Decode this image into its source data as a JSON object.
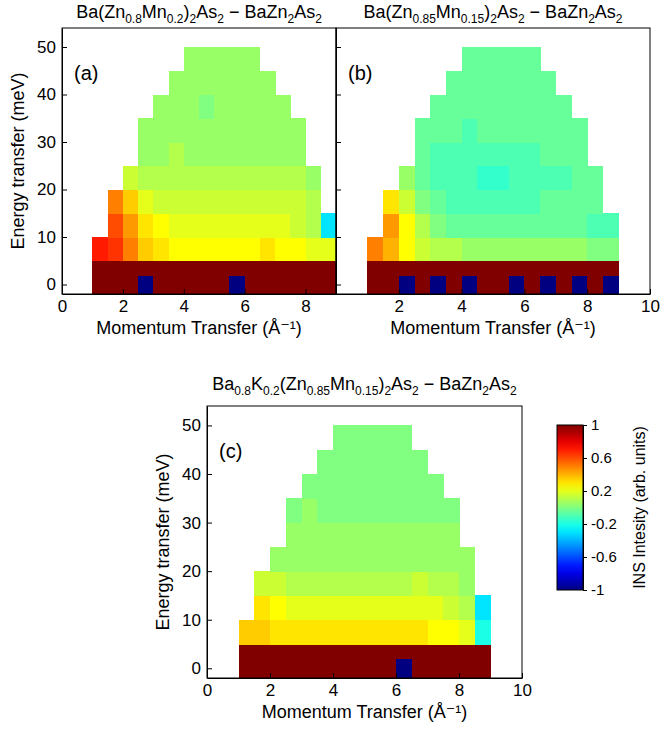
{
  "chart_data": [
    {
      "type": "heatmap",
      "title": "Ba(Zn0.8Mn0.2)2As2 − BaZn2As2",
      "annotations": [
        "(a)"
      ],
      "x_label": "Momentum Transfer (Å⁻¹)",
      "y_label": "Energy transfer (meV)",
      "xlim": [
        0,
        9
      ],
      "xticks": [
        0,
        2,
        4,
        6,
        8
      ],
      "ylim": [
        -2,
        54
      ],
      "yticks": [
        0,
        10,
        20,
        30,
        40,
        50
      ],
      "q_edges": [
        1,
        1.5,
        2,
        2.5,
        3,
        3.5,
        4,
        4.5,
        5,
        5.5,
        6,
        6.5,
        7,
        7.5,
        8,
        8.5,
        9
      ],
      "e_edges": [
        -2,
        2,
        5,
        10,
        15,
        20,
        25,
        30,
        35,
        40,
        45,
        50
      ],
      "cells": [
        [
          1,
          1,
          1,
          -1,
          1,
          1,
          1,
          1,
          1,
          -1,
          1,
          1,
          1,
          1,
          1,
          1
        ],
        [
          1,
          1,
          1,
          1,
          1,
          1,
          1,
          1,
          1,
          1,
          1,
          1,
          1,
          1,
          1,
          1
        ],
        [
          0.7,
          0.65,
          0.5,
          0.35,
          0.3,
          0.25,
          0.25,
          0.25,
          0.25,
          0.25,
          0.25,
          0.3,
          0.25,
          0.25,
          0.2,
          0.2
        ],
        [
          null,
          0.6,
          0.45,
          0.3,
          0.25,
          0.2,
          0.2,
          0.2,
          0.2,
          0.2,
          0.2,
          0.2,
          0.2,
          0.15,
          0.1,
          -0.3
        ],
        [
          null,
          0.5,
          0.35,
          0.2,
          0.15,
          0.15,
          0.15,
          0.15,
          0.15,
          0.15,
          0.15,
          0.15,
          0.15,
          0.15,
          0.1,
          null
        ],
        [
          null,
          null,
          0.15,
          0.1,
          0.1,
          0.1,
          0.1,
          0.1,
          0.1,
          0.1,
          0.1,
          0.1,
          0.1,
          0.1,
          0.05,
          null
        ],
        [
          null,
          null,
          null,
          0.05,
          0.05,
          0.1,
          0.05,
          0.05,
          0.05,
          0.05,
          0.05,
          0.05,
          0.05,
          0.05,
          null,
          null
        ],
        [
          null,
          null,
          null,
          0.05,
          0.05,
          0.05,
          0.05,
          0.05,
          0.05,
          0.05,
          0.05,
          0.05,
          0.05,
          0.05,
          null,
          null
        ],
        [
          null,
          null,
          null,
          null,
          0.05,
          0.05,
          0.05,
          0,
          0.05,
          0.05,
          0.05,
          0.05,
          0.05,
          null,
          null,
          null
        ],
        [
          null,
          null,
          null,
          null,
          null,
          0.05,
          0.05,
          0.05,
          0.05,
          0.05,
          0.05,
          0.05,
          null,
          null,
          null,
          null
        ],
        [
          null,
          null,
          null,
          null,
          null,
          null,
          0.05,
          0.05,
          0.05,
          0.05,
          0.05,
          null,
          null,
          null,
          null,
          null
        ]
      ]
    },
    {
      "type": "heatmap",
      "title": "Ba(Zn0.85Mn0.15)2As2 − BaZn2As2",
      "annotations": [
        "(b)"
      ],
      "x_label": "Momentum Transfer (Å⁻¹)",
      "tick_labels": "x",
      "xlim": [
        0,
        10
      ],
      "xticks": [
        2,
        4,
        6,
        8,
        10
      ],
      "ylim": [
        -2,
        54
      ],
      "yticks": [
        0,
        10,
        20,
        30,
        40,
        50
      ],
      "q_edges": [
        1,
        1.5,
        2,
        2.5,
        3,
        3.5,
        4,
        4.5,
        5,
        5.5,
        6,
        6.5,
        7,
        7.5,
        8,
        8.5,
        9
      ],
      "e_edges": [
        -2,
        2,
        5,
        10,
        15,
        20,
        25,
        30,
        35,
        40,
        45,
        50
      ],
      "cells": [
        [
          1,
          1,
          -1,
          1,
          -1,
          1,
          -1,
          1,
          1,
          -1,
          1,
          -1,
          1,
          -1,
          1,
          -1
        ],
        [
          1,
          1,
          1,
          1,
          1,
          1,
          1,
          1,
          1,
          1,
          1,
          1,
          1,
          1,
          1,
          1
        ],
        [
          0.5,
          0.4,
          0.25,
          0.15,
          0.1,
          0.1,
          0.05,
          0.05,
          0.05,
          0.05,
          0.05,
          0.05,
          0.05,
          0.05,
          0,
          0
        ],
        [
          null,
          0.45,
          0.25,
          0.1,
          0,
          -0.05,
          -0.05,
          -0.05,
          -0.05,
          -0.05,
          -0.05,
          -0.05,
          -0.05,
          -0.05,
          -0.1,
          -0.1
        ],
        [
          null,
          0.3,
          0.15,
          0,
          -0.05,
          -0.1,
          -0.1,
          -0.1,
          -0.1,
          -0.1,
          -0.1,
          -0.05,
          -0.05,
          -0.05,
          -0.05,
          null
        ],
        [
          null,
          null,
          0.05,
          -0.05,
          -0.1,
          -0.1,
          -0.1,
          -0.15,
          -0.15,
          -0.1,
          -0.1,
          -0.1,
          -0.1,
          -0.05,
          -0.05,
          null
        ],
        [
          null,
          null,
          null,
          -0.05,
          -0.1,
          -0.1,
          -0.1,
          -0.1,
          -0.1,
          -0.1,
          -0.1,
          -0.05,
          -0.05,
          -0.05,
          null,
          null
        ],
        [
          null,
          null,
          null,
          -0.05,
          -0.05,
          -0.05,
          -0.1,
          -0.05,
          -0.05,
          -0.05,
          -0.05,
          -0.05,
          -0.05,
          -0.05,
          null,
          null
        ],
        [
          null,
          null,
          null,
          null,
          -0.05,
          -0.05,
          -0.05,
          -0.05,
          -0.05,
          -0.05,
          -0.05,
          -0.05,
          -0.05,
          null,
          null,
          null
        ],
        [
          null,
          null,
          null,
          null,
          null,
          -0.05,
          -0.05,
          -0.05,
          -0.05,
          -0.05,
          -0.05,
          -0.05,
          null,
          null,
          null,
          null
        ],
        [
          null,
          null,
          null,
          null,
          null,
          null,
          -0.05,
          -0.05,
          -0.05,
          -0.05,
          -0.05,
          null,
          null,
          null,
          null,
          null
        ]
      ]
    },
    {
      "type": "heatmap",
      "title": "Ba0.8K0.2(Zn0.85Mn0.15)2As2 − BaZn2As2",
      "annotations": [
        "(c)"
      ],
      "x_label": "Momentum Transfer (Å⁻¹)",
      "y_label": "Energy transfer (meV)",
      "xlim": [
        0,
        10
      ],
      "xticks": [
        0,
        2,
        4,
        6,
        8,
        10
      ],
      "ylim": [
        -2,
        54
      ],
      "yticks": [
        0,
        10,
        20,
        30,
        40,
        50
      ],
      "q_edges": [
        1,
        1.5,
        2,
        2.5,
        3,
        3.5,
        4,
        4.5,
        5,
        5.5,
        6,
        6.5,
        7,
        7.5,
        8,
        8.5,
        9
      ],
      "e_edges": [
        -2,
        2,
        5,
        10,
        15,
        20,
        25,
        30,
        35,
        40,
        45,
        50
      ],
      "cells": [
        [
          1,
          1,
          1,
          1,
          1,
          1,
          1,
          1,
          1,
          1,
          -1,
          1,
          1,
          1,
          1,
          1
        ],
        [
          1,
          1,
          1,
          1,
          1,
          1,
          1,
          1,
          1,
          1,
          1,
          1,
          1,
          1,
          1,
          1
        ],
        [
          0.35,
          0.35,
          0.3,
          0.3,
          0.3,
          0.3,
          0.3,
          0.3,
          0.3,
          0.3,
          0.3,
          0.3,
          0.25,
          0.25,
          0.2,
          -0.2
        ],
        [
          null,
          0.3,
          0.25,
          0.2,
          0.2,
          0.2,
          0.2,
          0.2,
          0.2,
          0.2,
          0.2,
          0.2,
          0.2,
          0.15,
          0.1,
          -0.3
        ],
        [
          null,
          0.15,
          0.15,
          0.1,
          0.1,
          0.1,
          0.1,
          0.1,
          0.1,
          0.1,
          0.1,
          0.15,
          0.1,
          0.1,
          0.05,
          null
        ],
        [
          null,
          null,
          0.05,
          0.05,
          0.05,
          0.05,
          0.05,
          0.05,
          0.05,
          0.05,
          0.05,
          0.05,
          0.05,
          0.05,
          0.05,
          null
        ],
        [
          null,
          null,
          null,
          0.05,
          0.05,
          0.05,
          0.05,
          0.05,
          0.05,
          0.05,
          0.05,
          0.05,
          0.05,
          0.05,
          null,
          null
        ],
        [
          null,
          null,
          null,
          0,
          0.05,
          0,
          0,
          0,
          0,
          0,
          0,
          0,
          0,
          0,
          null,
          null
        ],
        [
          null,
          null,
          null,
          null,
          0,
          0,
          0,
          0,
          0,
          0,
          0,
          0,
          0,
          null,
          null,
          null
        ],
        [
          null,
          null,
          null,
          null,
          null,
          0,
          0,
          0,
          0,
          0,
          0,
          0,
          null,
          null,
          null,
          null
        ],
        [
          null,
          null,
          null,
          null,
          null,
          null,
          0,
          0,
          0,
          0,
          0,
          null,
          null,
          null,
          null,
          null
        ]
      ],
      "colorbar": {
        "label": "INS Intesity (arb. units)",
        "range": [
          -1,
          1
        ],
        "ticks": [
          -1,
          -0.6,
          -0.2,
          0.2,
          0.6,
          1
        ]
      }
    }
  ]
}
